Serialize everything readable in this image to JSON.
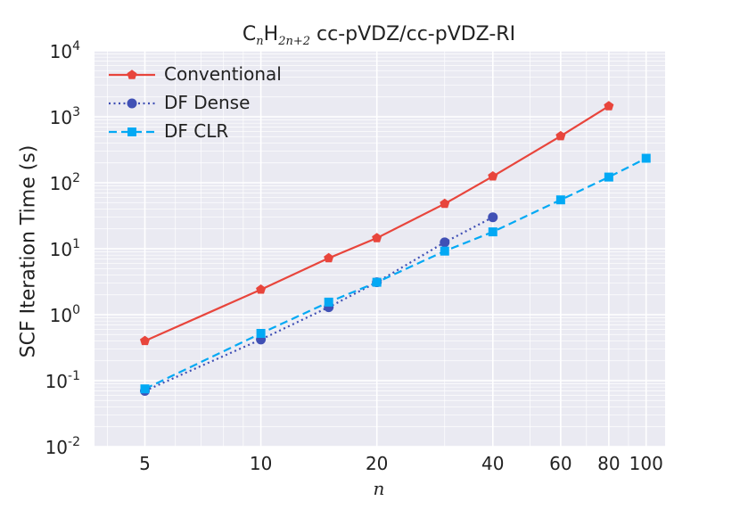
{
  "chart_data": {
    "type": "line",
    "title": {
      "prefix": "C",
      "sub1": "n",
      "mid": "H",
      "sub2": "2n+2",
      "suffix": " cc-pVDZ/cc-pVDZ-RI"
    },
    "xlabel": "n",
    "ylabel": "SCF Iteration Time (s)",
    "xscale": "log",
    "yscale": "log",
    "xlim": [
      3.7,
      112
    ],
    "ylim": [
      0.01,
      10000
    ],
    "xticks": [
      {
        "value": 5,
        "label": "5"
      },
      {
        "value": 10,
        "label": "10"
      },
      {
        "value": 20,
        "label": "20"
      },
      {
        "value": 40,
        "label": "40"
      },
      {
        "value": 60,
        "label": "60"
      },
      {
        "value": 80,
        "label": "80"
      },
      {
        "value": 100,
        "label": "100"
      }
    ],
    "yticks": [
      {
        "value": 0.01,
        "base": "10",
        "exp": "-2"
      },
      {
        "value": 0.1,
        "base": "10",
        "exp": "-1"
      },
      {
        "value": 1,
        "base": "10",
        "exp": "0"
      },
      {
        "value": 10,
        "base": "10",
        "exp": "1"
      },
      {
        "value": 100,
        "base": "10",
        "exp": "2"
      },
      {
        "value": 1000,
        "base": "10",
        "exp": "3"
      },
      {
        "value": 10000,
        "base": "10",
        "exp": "4"
      }
    ],
    "grid": true,
    "legend_position": "top-left",
    "series": [
      {
        "name": "Conventional",
        "color": "#e8453c",
        "linestyle": "solid",
        "marker": "pentagon",
        "x": [
          5,
          10,
          15,
          20,
          30,
          40,
          60,
          80
        ],
        "y": [
          0.4,
          2.4,
          7.2,
          14.5,
          48,
          125,
          510,
          1450
        ]
      },
      {
        "name": "DF Dense",
        "color": "#4050b5",
        "linestyle": "dotted",
        "marker": "circle",
        "x": [
          5,
          10,
          15,
          20,
          30,
          40
        ],
        "y": [
          0.07,
          0.42,
          1.3,
          3.1,
          12.5,
          30
        ]
      },
      {
        "name": "DF CLR",
        "color": "#03a9f4",
        "linestyle": "dashed",
        "marker": "square",
        "x": [
          5,
          10,
          15,
          20,
          30,
          40,
          60,
          80,
          100
        ],
        "y": [
          0.075,
          0.52,
          1.55,
          3.1,
          9.2,
          18,
          55,
          122,
          235
        ]
      }
    ]
  }
}
